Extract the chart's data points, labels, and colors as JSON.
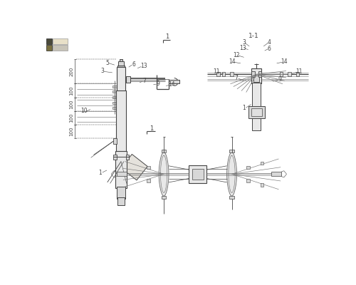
{
  "bg_color": "#ffffff",
  "line_color": "#666666",
  "dark_line": "#444444",
  "med_line": "#777777",
  "light_fill": "#e8e8e8",
  "mid_fill": "#d8d8d8",
  "dark_fill": "#c8c8c8"
}
